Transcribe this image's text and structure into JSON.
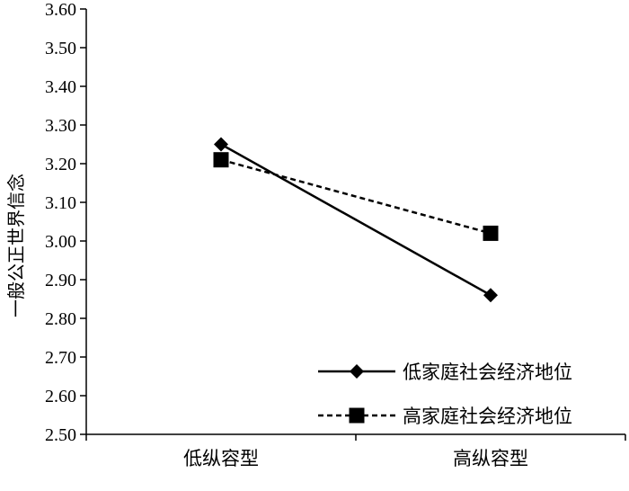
{
  "chart_data": {
    "type": "line",
    "categories": [
      "低纵容型",
      "高纵容型"
    ],
    "series": [
      {
        "name": "低家庭社会经济地位",
        "values": [
          3.25,
          2.86
        ],
        "style": "solid",
        "marker": "diamond"
      },
      {
        "name": "高家庭社会经济地位",
        "values": [
          3.21,
          3.02
        ],
        "style": "dashed",
        "marker": "square"
      }
    ],
    "title": "",
    "xlabel": "",
    "ylabel": "一般公正世界信念",
    "ylim": [
      2.5,
      3.6
    ],
    "yticks": [
      "2.50",
      "2.60",
      "2.70",
      "2.80",
      "2.90",
      "3.00",
      "3.10",
      "3.20",
      "3.30",
      "3.40",
      "3.50",
      "3.60"
    ],
    "grid": false,
    "legend": "bottom-right",
    "colors": {
      "line": "#000000",
      "background": "#ffffff"
    }
  }
}
